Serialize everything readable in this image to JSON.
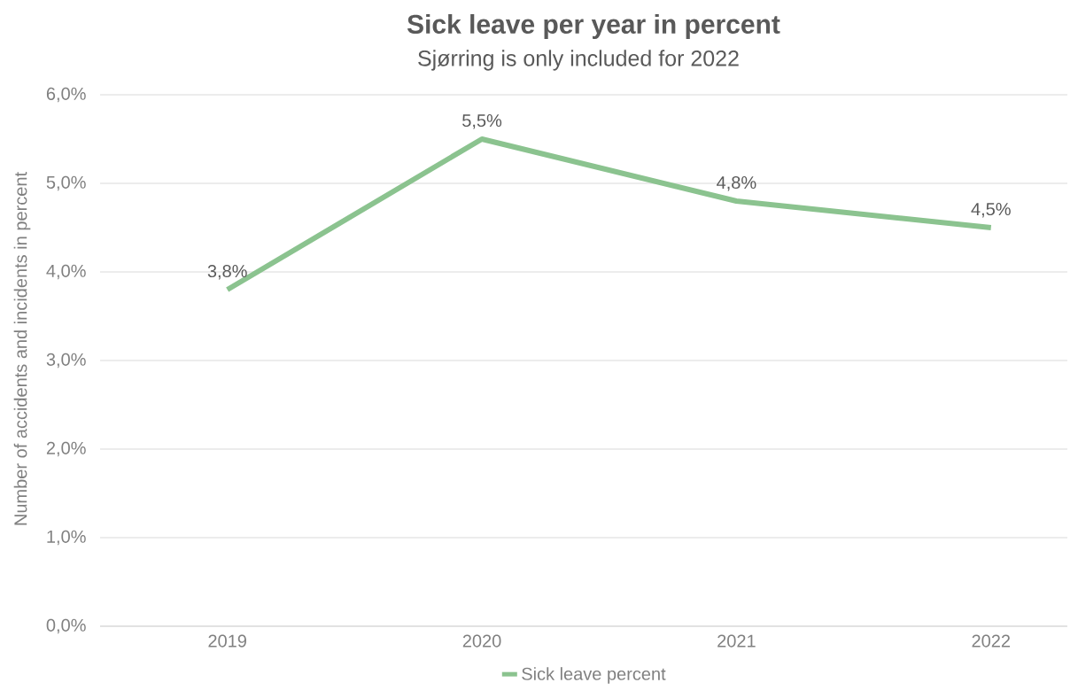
{
  "chart_data": {
    "type": "line",
    "title": "Sick leave per year in percent",
    "subtitle": "Sjørring is only included for 2022",
    "ylabel": "Number of accidents and incidents in percent",
    "categories": [
      "2019",
      "2020",
      "2021",
      "2022"
    ],
    "series": [
      {
        "name": "Sick leave percent",
        "color": "#8bc38f",
        "values": [
          3.8,
          5.5,
          4.8,
          4.5
        ],
        "value_labels": [
          "3,8%",
          "5,5%",
          "4,8%",
          "4,5%"
        ]
      }
    ],
    "ylim": [
      0,
      6
    ],
    "yticks": [
      {
        "value": 0,
        "label": "0,0%"
      },
      {
        "value": 1,
        "label": "1,0%"
      },
      {
        "value": 2,
        "label": "2,0%"
      },
      {
        "value": 3,
        "label": "3,0%"
      },
      {
        "value": 4,
        "label": "4,0%"
      },
      {
        "value": 5,
        "label": "5,0%"
      },
      {
        "value": 6,
        "label": "6,0%"
      }
    ],
    "grid": "y",
    "legend": "bottom",
    "marker": "none",
    "line_style": "solid"
  }
}
